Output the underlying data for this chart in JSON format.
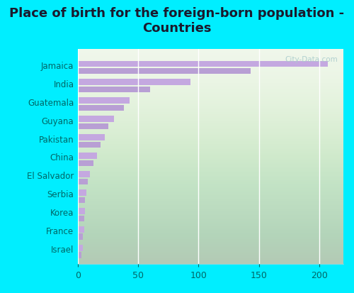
{
  "title": "Place of birth for the foreign-born population -\nCountries",
  "entries": [
    {
      "country": "Jamaica",
      "v1": 207,
      "v2": 143
    },
    {
      "country": "India",
      "v1": 93,
      "v2": 60
    },
    {
      "country": "Guatemala",
      "v1": 43,
      "v2": 38
    },
    {
      "country": "Guyana",
      "v1": 30,
      "v2": 25
    },
    {
      "country": "Pakistan",
      "v1": 22,
      "v2": 19
    },
    {
      "country": "China",
      "v1": 16,
      "v2": 13
    },
    {
      "country": "El Salvador",
      "v1": 10,
      "v2": 8
    },
    {
      "country": "Serbia",
      "v1": 7,
      "v2": 6
    },
    {
      "country": "Korea",
      "v1": 6,
      "v2": 5
    },
    {
      "country": "France",
      "v1": 5,
      "v2": 4
    },
    {
      "country": "Israel",
      "v1": 4,
      "v2": 3
    }
  ],
  "color1": "#c4a8e0",
  "color2": "#b89fd4",
  "bg_outer": "#00eeff",
  "bg_plot_top": "#e8f5e0",
  "bg_plot_bottom": "#f8fbf5",
  "xlim": [
    0,
    220
  ],
  "xticks": [
    0,
    50,
    100,
    150,
    200
  ],
  "title_fontsize": 13,
  "label_fontsize": 8.5,
  "tick_fontsize": 9,
  "label_color": "#006666",
  "watermark_text": "City-Data.com",
  "watermark_color": "#aacccc"
}
